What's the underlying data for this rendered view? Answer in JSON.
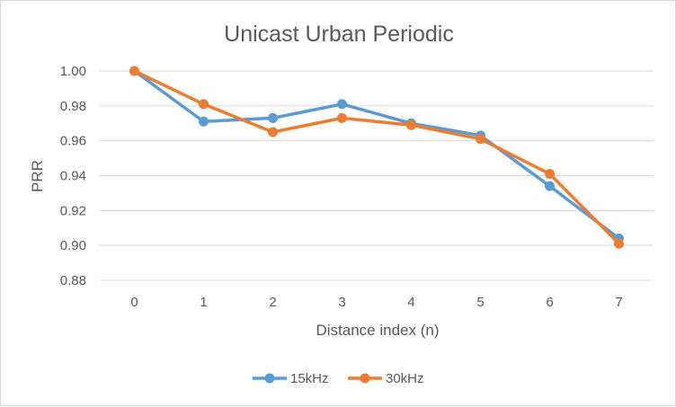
{
  "chart_data": {
    "type": "line",
    "title": "Unicast Urban Periodic",
    "xlabel": "Distance index (n)",
    "ylabel": "PRR",
    "categories": [
      "0",
      "1",
      "2",
      "3",
      "4",
      "5",
      "6",
      "7"
    ],
    "ylim": [
      0.88,
      1.0
    ],
    "yticks": [
      "0.88",
      "0.90",
      "0.92",
      "0.94",
      "0.96",
      "0.98",
      "1.00"
    ],
    "grid": true,
    "legend_position": "bottom",
    "series": [
      {
        "name": "15kHz",
        "color": "#5b9bd5",
        "values": [
          1.0,
          0.971,
          0.973,
          0.981,
          0.97,
          0.963,
          0.934,
          0.904
        ]
      },
      {
        "name": "30kHz",
        "color": "#ed7d31",
        "values": [
          1.0,
          0.981,
          0.965,
          0.973,
          0.969,
          0.961,
          0.941,
          0.901
        ]
      }
    ]
  }
}
